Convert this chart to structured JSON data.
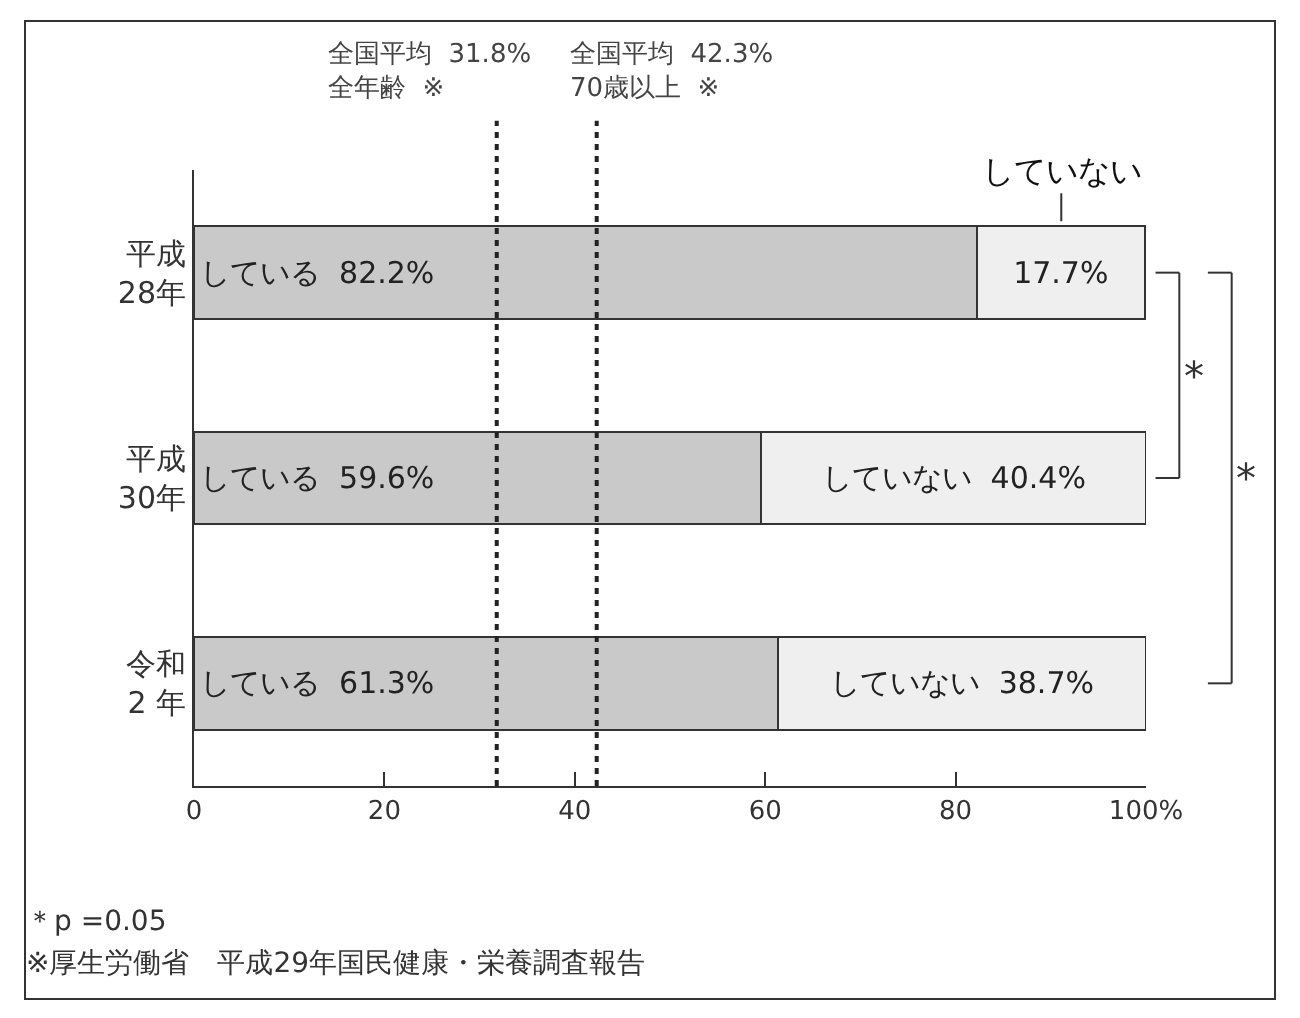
{
  "chart_data": {
    "type": "bar",
    "orientation": "horizontal",
    "stacked": true,
    "categories": [
      "平成\n28年",
      "平成\n30年",
      "令和\n2 年"
    ],
    "series": [
      {
        "color": "#c8c9c8",
        "values": [
          82.2,
          59.6,
          61.3
        ],
        "value_labels": [
          "している  82.2%",
          "している  59.6%",
          "している  61.3%"
        ]
      },
      {
        "color": "#efefef",
        "values": [
          17.7,
          40.4,
          38.7
        ],
        "value_labels": [
          "17.7%",
          "していない  40.4%",
          "していない  38.7%"
        ]
      }
    ],
    "xlim": [
      0,
      100
    ],
    "xticks": [
      0,
      20,
      40,
      60,
      80,
      {
        "value": 100,
        "label": "100%"
      }
    ],
    "grid": false,
    "ref_lines": [
      {
        "axis": "x",
        "value": 31.8,
        "label": "全国平均  31.8%\n全年齢  ※",
        "line_style": "dotted",
        "color": "#222222"
      },
      {
        "axis": "x",
        "value": 42.3,
        "label": "全国平均  42.3%\n70歳以上  ※",
        "line_style": "dotted",
        "color": "#222222"
      }
    ],
    "annotations": [
      "していない",
      "*",
      "*",
      "＊p =0.05",
      "※厚生労働省　平成29年国民健康・栄養調査報告"
    ]
  }
}
